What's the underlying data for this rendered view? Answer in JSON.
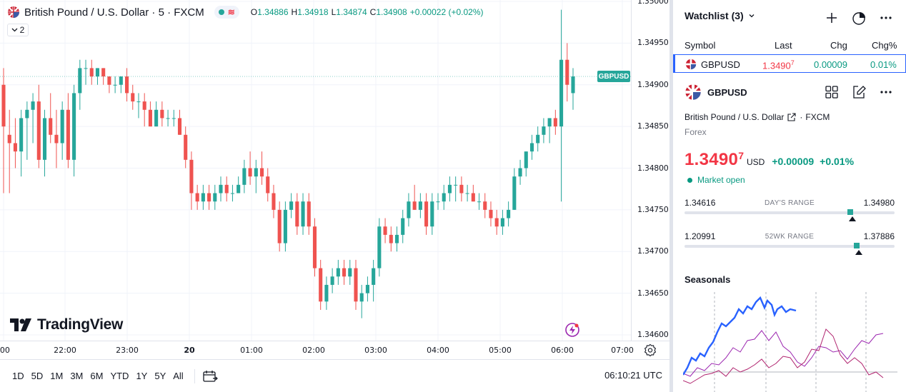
{
  "chart_header": {
    "symbol_title": "British Pound / U.S. Dollar · 5 · FXCM",
    "pill_wave": "≋",
    "ohlc": [
      {
        "k": "O",
        "v": "1.34886"
      },
      {
        "k": "H",
        "v": "1.34918"
      },
      {
        "k": "L",
        "v": "1.34874"
      },
      {
        "k": "C",
        "v": "1.34908"
      },
      {
        "k": "",
        "v": "+0.00022 (+0.02%)"
      }
    ],
    "legend_count": "2"
  },
  "price_tag": "GBPUSD",
  "logo_text": "TradingView",
  "chart_data": {
    "type": "candlestick",
    "title": "British Pound / U.S. Dollar · 5 · FXCM",
    "ylim": [
      1.3459,
      1.35
    ],
    "y_ticks": [
      "1.35000",
      "1.34950",
      "1.34900",
      "1.34850",
      "1.34800",
      "1.34750",
      "1.34700",
      "1.34650",
      "1.34600"
    ],
    "x_labels": [
      ":00",
      "22:00",
      "23:00",
      "20",
      "01:00",
      "02:00",
      "03:00",
      "04:00",
      "05:00",
      "06:00",
      "07:00"
    ],
    "candles": [
      [
        1.349,
        1.3492,
        1.3477,
        1.3485
      ],
      [
        1.3484,
        1.3487,
        1.3477,
        1.3483
      ],
      [
        1.3483,
        1.3486,
        1.348,
        1.3482
      ],
      [
        1.3482,
        1.3487,
        1.3479,
        1.3486
      ],
      [
        1.3486,
        1.3488,
        1.3481,
        1.3487
      ],
      [
        1.3487,
        1.3489,
        1.3483,
        1.3488
      ],
      [
        1.3488,
        1.349,
        1.348,
        1.3481
      ],
      [
        1.3481,
        1.3487,
        1.3479,
        1.3486
      ],
      [
        1.3486,
        1.3489,
        1.3483,
        1.3484
      ],
      [
        1.3484,
        1.3487,
        1.348,
        1.3483
      ],
      [
        1.3483,
        1.3488,
        1.3481,
        1.3487
      ],
      [
        1.3487,
        1.3489,
        1.348,
        1.3481
      ],
      [
        1.3481,
        1.349,
        1.3479,
        1.3489
      ],
      [
        1.3489,
        1.3493,
        1.3487,
        1.3492
      ],
      [
        1.3492,
        1.3493,
        1.349,
        1.3492
      ],
      [
        1.3492,
        1.3493,
        1.349,
        1.3491
      ],
      [
        1.3491,
        1.3492,
        1.349,
        1.3492
      ],
      [
        1.3492,
        1.3492,
        1.349,
        1.3491
      ],
      [
        1.3491,
        1.3491,
        1.3489,
        1.349
      ],
      [
        1.349,
        1.3491,
        1.3489,
        1.349
      ],
      [
        1.349,
        1.3491,
        1.3489,
        1.3491
      ],
      [
        1.3491,
        1.3492,
        1.3488,
        1.3489
      ],
      [
        1.3489,
        1.349,
        1.3487,
        1.3488
      ],
      [
        1.3488,
        1.3489,
        1.3486,
        1.3488
      ],
      [
        1.3488,
        1.3489,
        1.3485,
        1.3487
      ],
      [
        1.3487,
        1.3488,
        1.3485,
        1.3485
      ],
      [
        1.3485,
        1.3488,
        1.3485,
        1.3487
      ],
      [
        1.3487,
        1.3488,
        1.3485,
        1.3486
      ],
      [
        1.3486,
        1.3487,
        1.3485,
        1.3486
      ],
      [
        1.3486,
        1.3487,
        1.3485,
        1.3486
      ],
      [
        1.3486,
        1.3487,
        1.3484,
        1.3484
      ],
      [
        1.3484,
        1.3485,
        1.348,
        1.3481
      ],
      [
        1.3481,
        1.3482,
        1.3475,
        1.3477
      ],
      [
        1.3477,
        1.3478,
        1.3475,
        1.3476
      ],
      [
        1.3476,
        1.3478,
        1.3475,
        1.3477
      ],
      [
        1.3477,
        1.3478,
        1.3475,
        1.3476
      ],
      [
        1.3476,
        1.3478,
        1.3475,
        1.3477
      ],
      [
        1.3477,
        1.3479,
        1.3476,
        1.3478
      ],
      [
        1.3478,
        1.3479,
        1.3476,
        1.3477
      ],
      [
        1.3477,
        1.3478,
        1.3476,
        1.3477
      ],
      [
        1.3477,
        1.3479,
        1.3477,
        1.3478
      ],
      [
        1.3478,
        1.3481,
        1.3477,
        1.348
      ],
      [
        1.348,
        1.3482,
        1.3478,
        1.3479
      ],
      [
        1.3479,
        1.3481,
        1.3477,
        1.348
      ],
      [
        1.348,
        1.3482,
        1.3478,
        1.3479
      ],
      [
        1.3479,
        1.348,
        1.3476,
        1.3477
      ],
      [
        1.3477,
        1.3478,
        1.3474,
        1.3475
      ],
      [
        1.3475,
        1.3476,
        1.347,
        1.3471
      ],
      [
        1.3471,
        1.3476,
        1.347,
        1.3475
      ],
      [
        1.3475,
        1.3477,
        1.3474,
        1.3476
      ],
      [
        1.3476,
        1.3477,
        1.3472,
        1.3473
      ],
      [
        1.3473,
        1.3477,
        1.3472,
        1.3476
      ],
      [
        1.3476,
        1.3477,
        1.3472,
        1.3473
      ],
      [
        1.3473,
        1.3474,
        1.3467,
        1.3468
      ],
      [
        1.3468,
        1.3469,
        1.3463,
        1.3464
      ],
      [
        1.3464,
        1.3467,
        1.3463,
        1.3466
      ],
      [
        1.3466,
        1.3468,
        1.3465,
        1.3467
      ],
      [
        1.3467,
        1.3469,
        1.3466,
        1.3468
      ],
      [
        1.3468,
        1.3469,
        1.3466,
        1.3467
      ],
      [
        1.3467,
        1.3469,
        1.3466,
        1.3468
      ],
      [
        1.3468,
        1.3469,
        1.3463,
        1.3464
      ],
      [
        1.3464,
        1.3466,
        1.3462,
        1.3465
      ],
      [
        1.3465,
        1.3467,
        1.3464,
        1.3466
      ],
      [
        1.3466,
        1.3469,
        1.3464,
        1.3468
      ],
      [
        1.3468,
        1.3474,
        1.3467,
        1.3473
      ],
      [
        1.3473,
        1.3474,
        1.3471,
        1.3472
      ],
      [
        1.3472,
        1.3473,
        1.347,
        1.3471
      ],
      [
        1.3471,
        1.3473,
        1.347,
        1.3472
      ],
      [
        1.3472,
        1.3475,
        1.3471,
        1.3474
      ],
      [
        1.3474,
        1.3477,
        1.3473,
        1.3476
      ],
      [
        1.3476,
        1.3478,
        1.3475,
        1.3475
      ],
      [
        1.3475,
        1.3477,
        1.3474,
        1.3476
      ],
      [
        1.3476,
        1.3477,
        1.3472,
        1.3473
      ],
      [
        1.3473,
        1.3477,
        1.3472,
        1.3476
      ],
      [
        1.3476,
        1.3477,
        1.3475,
        1.3476
      ],
      [
        1.3476,
        1.3478,
        1.3475,
        1.3477
      ],
      [
        1.3477,
        1.3479,
        1.3476,
        1.3478
      ],
      [
        1.3478,
        1.3479,
        1.3476,
        1.3478
      ],
      [
        1.3478,
        1.3479,
        1.3476,
        1.3477
      ],
      [
        1.3477,
        1.3478,
        1.3476,
        1.3477
      ],
      [
        1.3477,
        1.3478,
        1.3476,
        1.3476
      ],
      [
        1.3476,
        1.3477,
        1.3475,
        1.3476
      ],
      [
        1.3476,
        1.3477,
        1.3474,
        1.3475
      ],
      [
        1.3475,
        1.3476,
        1.3473,
        1.3474
      ],
      [
        1.3474,
        1.3475,
        1.3472,
        1.3473
      ],
      [
        1.3473,
        1.3475,
        1.3472,
        1.3474
      ],
      [
        1.3474,
        1.3476,
        1.3473,
        1.3475
      ],
      [
        1.3475,
        1.348,
        1.3475,
        1.3479
      ],
      [
        1.3479,
        1.3481,
        1.3478,
        1.348
      ],
      [
        1.348,
        1.3482,
        1.3479,
        1.3482
      ],
      [
        1.3482,
        1.3484,
        1.3481,
        1.3483
      ],
      [
        1.3483,
        1.3485,
        1.3482,
        1.3484
      ],
      [
        1.3484,
        1.3486,
        1.3483,
        1.3485
      ],
      [
        1.3485,
        1.3486,
        1.3483,
        1.3486
      ],
      [
        1.3486,
        1.3487,
        1.3484,
        1.3485
      ],
      [
        1.3485,
        1.3499,
        1.3476,
        1.3493
      ],
      [
        1.3493,
        1.3495,
        1.3488,
        1.349
      ],
      [
        1.3489,
        1.3492,
        1.3487,
        1.3491
      ]
    ]
  },
  "time_scale": [
    {
      "label": ":00",
      "x": 5
    },
    {
      "label": "22:00",
      "x": 91
    },
    {
      "label": "23:00",
      "x": 178
    },
    {
      "label": "20",
      "x": 265
    },
    {
      "label": "01:00",
      "x": 352
    },
    {
      "label": "02:00",
      "x": 439
    },
    {
      "label": "03:00",
      "x": 526
    },
    {
      "label": "04:00",
      "x": 613
    },
    {
      "label": "05:00",
      "x": 700
    },
    {
      "label": "06:00",
      "x": 787
    },
    {
      "label": "07:00",
      "x": 871
    }
  ],
  "bottom_toolbar": {
    "ranges": [
      "1D",
      "5D",
      "1M",
      "3M",
      "6M",
      "YTD",
      "1Y",
      "5Y",
      "All"
    ],
    "clock": "06:10:21 UTC"
  },
  "watchlist": {
    "title": "Watchlist (3)",
    "columns": {
      "symbol": "Symbol",
      "last": "Last",
      "chg": "Chg",
      "chgp": "Chg%"
    },
    "row": {
      "symbol": "GBPUSD",
      "last": "1.3490",
      "last_sup": "7",
      "chg": "0.00009",
      "chgp": "0.01%"
    }
  },
  "details": {
    "symbol": "GBPUSD",
    "name": "British Pound / U.S. Dollar",
    "exchange": "FXCM",
    "type": "Forex",
    "price": "1.3490",
    "price_sup": "7",
    "currency": "USD",
    "change": "+0.00009",
    "change_pct": "+0.01%",
    "market_status": "Market open",
    "days_range": {
      "label": "DAY'S RANGE",
      "low": "1.34616",
      "high": "1.34980",
      "pos": 0.79
    },
    "wk52_range": {
      "label": "52WK RANGE",
      "low": "1.20991",
      "high": "1.37886",
      "pos": 0.82
    }
  },
  "seasonals": {
    "title": "Seasonals"
  },
  "colors": {
    "up": "#26a69a",
    "down": "#ef5350",
    "accent": "#2962ff"
  }
}
